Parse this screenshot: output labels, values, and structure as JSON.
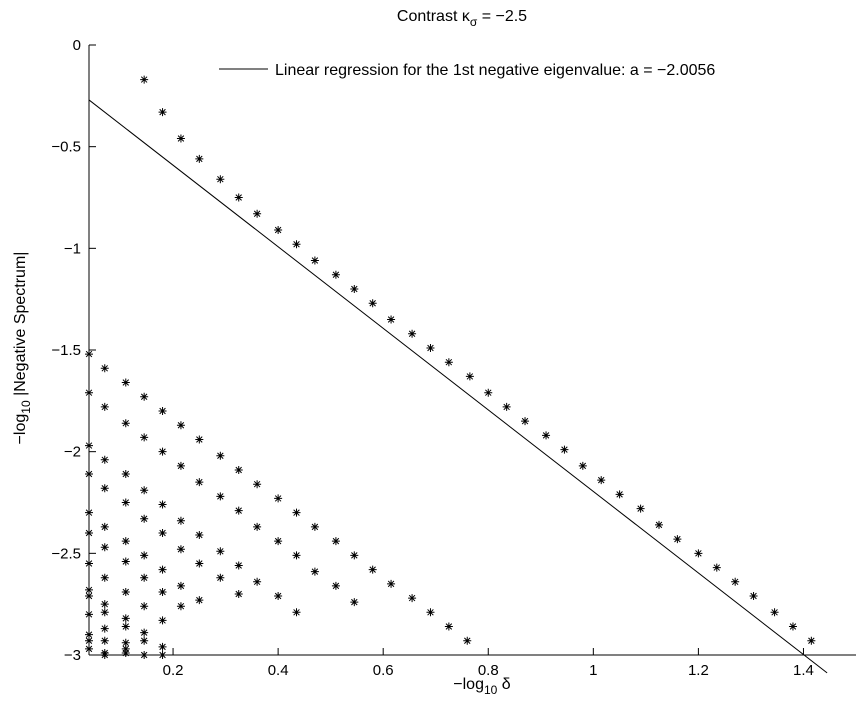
{
  "chart_data": {
    "type": "scatter",
    "title_main": "Contrast κ",
    "title_sub": "σ",
    "title_suffix": " = −2.5",
    "xlabel_main": "−log",
    "xlabel_sub": "10",
    "xlabel_suffix": " δ",
    "ylabel_main": "−log",
    "ylabel_sub": "10",
    "ylabel_suffix": " |Negative Spectrum|",
    "xlim": [
      0.04,
      1.5
    ],
    "ylim": [
      -3,
      0
    ],
    "xticks": [
      0.2,
      0.4,
      0.6,
      0.8,
      1,
      1.2,
      1.4
    ],
    "xtick_labels": [
      "0.2",
      "0.4",
      "0.6",
      "0.8",
      "1",
      "1.2",
      "1.4"
    ],
    "yticks": [
      0,
      -0.5,
      -1,
      -1.5,
      -2,
      -2.5,
      -3
    ],
    "ytick_labels": [
      "0",
      "−0.5",
      "−1",
      "−1.5",
      "−2",
      "−2.5",
      "−3"
    ],
    "grid": false,
    "legend": {
      "position": "top-right",
      "entry": "Linear regression for the 1st negative eigenvalue: a = −2.0056"
    },
    "regression_line": {
      "slope": -2.0056,
      "intercept": -0.19,
      "x_start": 0.04,
      "x_end": 1.445
    },
    "marker": "*",
    "series": [
      {
        "x": [
          0.145,
          0.18,
          0.215,
          0.25,
          0.29,
          0.325,
          0.36,
          0.4,
          0.435,
          0.47,
          0.51,
          0.545,
          0.58,
          0.615,
          0.655,
          0.69,
          0.725,
          0.765,
          0.8,
          0.835,
          0.87,
          0.91,
          0.945,
          0.98,
          1.015,
          1.05,
          1.09,
          1.125,
          1.16,
          1.2,
          1.235,
          1.27,
          1.305,
          1.345,
          1.38,
          1.415
        ],
        "y": [
          -0.17,
          -0.33,
          -0.46,
          -0.56,
          -0.66,
          -0.75,
          -0.83,
          -0.91,
          -0.98,
          -1.06,
          -1.13,
          -1.2,
          -1.27,
          -1.35,
          -1.42,
          -1.49,
          -1.56,
          -1.63,
          -1.71,
          -1.78,
          -1.85,
          -1.92,
          -1.99,
          -2.07,
          -2.14,
          -2.21,
          -2.28,
          -2.36,
          -2.43,
          -2.5,
          -2.57,
          -2.64,
          -2.71,
          -2.79,
          -2.86,
          -2.93
        ]
      },
      {
        "x": [
          0.04,
          0.07,
          0.11,
          0.145,
          0.18,
          0.215,
          0.25,
          0.29,
          0.325,
          0.36,
          0.4,
          0.435,
          0.47,
          0.51,
          0.545,
          0.58,
          0.615,
          0.655,
          0.69,
          0.725,
          0.76
        ],
        "y": [
          -1.52,
          -1.59,
          -1.66,
          -1.73,
          -1.8,
          -1.87,
          -1.94,
          -2.02,
          -2.09,
          -2.16,
          -2.23,
          -2.3,
          -2.37,
          -2.44,
          -2.51,
          -2.58,
          -2.65,
          -2.72,
          -2.79,
          -2.86,
          -2.93
        ]
      },
      {
        "x": [
          0.04,
          0.07,
          0.11,
          0.145,
          0.18,
          0.215,
          0.25,
          0.29,
          0.325,
          0.36,
          0.4,
          0.435,
          0.47,
          0.51,
          0.545
        ],
        "y": [
          -1.71,
          -1.78,
          -1.86,
          -1.93,
          -2.0,
          -2.07,
          -2.15,
          -2.22,
          -2.29,
          -2.37,
          -2.44,
          -2.51,
          -2.59,
          -2.66,
          -2.74
        ]
      },
      {
        "x": [
          0.04,
          0.07,
          0.11,
          0.145,
          0.18,
          0.215,
          0.25,
          0.29,
          0.325,
          0.36,
          0.4,
          0.435
        ],
        "y": [
          -1.97,
          -2.04,
          -2.11,
          -2.19,
          -2.26,
          -2.34,
          -2.41,
          -2.49,
          -2.56,
          -2.64,
          -2.71,
          -2.79
        ]
      },
      {
        "x": [
          0.04,
          0.07,
          0.11,
          0.145,
          0.18,
          0.215,
          0.25,
          0.29,
          0.325
        ],
        "y": [
          -2.11,
          -2.18,
          -2.25,
          -2.33,
          -2.4,
          -2.48,
          -2.55,
          -2.62,
          -2.7
        ]
      },
      {
        "x": [
          0.04,
          0.07,
          0.11,
          0.145,
          0.18,
          0.215,
          0.25
        ],
        "y": [
          -2.3,
          -2.37,
          -2.44,
          -2.51,
          -2.58,
          -2.66,
          -2.73
        ]
      },
      {
        "x": [
          0.04,
          0.07,
          0.11,
          0.145,
          0.18,
          0.215
        ],
        "y": [
          -2.4,
          -2.47,
          -2.54,
          -2.62,
          -2.69,
          -2.76
        ]
      },
      {
        "x": [
          0.04,
          0.07,
          0.11,
          0.145,
          0.18
        ],
        "y": [
          -2.55,
          -2.62,
          -2.69,
          -2.76,
          -2.83
        ]
      },
      {
        "x": [
          0.04,
          0.07,
          0.11,
          0.145,
          0.18
        ],
        "y": [
          -2.68,
          -2.75,
          -2.82,
          -2.89,
          -2.96
        ]
      },
      {
        "x": [
          0.04,
          0.07,
          0.11,
          0.145,
          0.18
        ],
        "y": [
          -2.71,
          -2.79,
          -2.86,
          -2.93,
          -3.0
        ]
      },
      {
        "x": [
          0.04,
          0.07,
          0.11,
          0.145
        ],
        "y": [
          -2.8,
          -2.87,
          -2.94,
          -3.0
        ]
      },
      {
        "x": [
          0.04,
          0.07,
          0.11
        ],
        "y": [
          -2.93,
          -2.99,
          -2.97
        ]
      },
      {
        "x": [
          0.04,
          0.07,
          0.11
        ],
        "y": [
          -2.9,
          -2.93,
          -2.99
        ]
      },
      {
        "x": [
          0.04,
          0.07
        ],
        "y": [
          -2.97,
          -3.0
        ]
      }
    ]
  }
}
